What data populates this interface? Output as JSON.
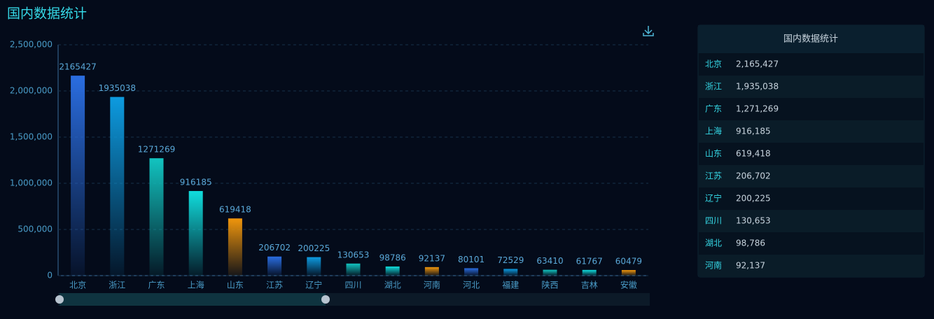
{
  "chart_data": {
    "type": "bar",
    "title": "国内数据统计",
    "categories": [
      "北京",
      "浙江",
      "广东",
      "上海",
      "山东",
      "江苏",
      "辽宁",
      "四川",
      "湖北",
      "河南",
      "河北",
      "福建",
      "陕西",
      "吉林",
      "安徽"
    ],
    "values": [
      2165427,
      1935038,
      1271269,
      916185,
      619418,
      206702,
      200225,
      130653,
      98786,
      92137,
      80101,
      72529,
      63410,
      61767,
      60479
    ],
    "colors": [
      "#2a6de0",
      "#0d9be0",
      "#12c4c0",
      "#10dede",
      "#f0960c"
    ],
    "ylim": [
      0,
      2500000
    ],
    "yticks": [
      0,
      {
        "value": 500000,
        "label": "500,000"
      },
      {
        "value": 1000000,
        "label": "1,000,000"
      },
      {
        "value": 1500000,
        "label": "1,500,000"
      },
      {
        "value": 2000000,
        "label": "2,000,000"
      },
      {
        "value": 2500000,
        "label": "2,500,000"
      }
    ],
    "grid": true
  },
  "table": {
    "title": "国内数据统计",
    "rows": [
      [
        "北京",
        "2,165,427"
      ],
      [
        "浙江",
        "1,935,038"
      ],
      [
        "广东",
        "1,271,269"
      ],
      [
        "上海",
        "916,185"
      ],
      [
        "山东",
        "619,418"
      ],
      [
        "江苏",
        "206,702"
      ],
      [
        "辽宁",
        "200,225"
      ],
      [
        "四川",
        "130,653"
      ],
      [
        "湖北",
        "98,786"
      ],
      [
        "河南",
        "92,137"
      ]
    ]
  }
}
